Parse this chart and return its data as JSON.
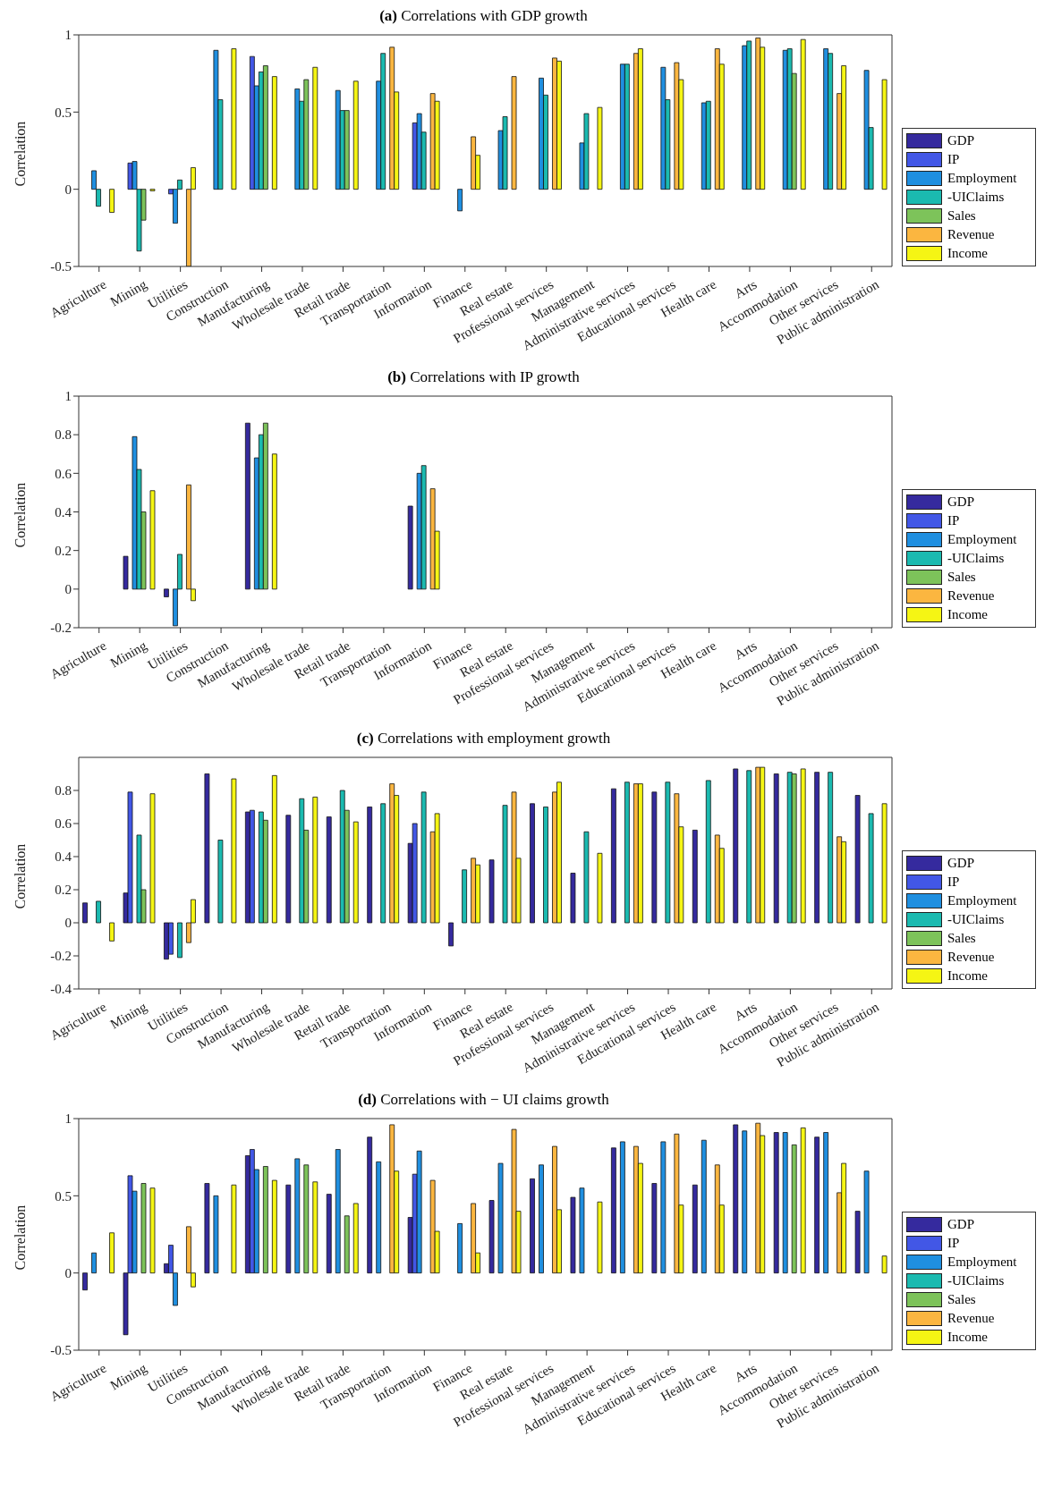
{
  "chart_data": [
    {
      "type": "bar",
      "title": "(a) Correlations with GDP growth",
      "ylabel": "Correlation",
      "categories": [
        "Agriculture",
        "Mining",
        "Utilities",
        "Construction",
        "Manufacturing",
        "Wholesale trade",
        "Retail trade",
        "Transportation",
        "Information",
        "Finance",
        "Real estate",
        "Professional services",
        "Management",
        "Administrative services",
        "Educational services",
        "Health care",
        "Arts",
        "Accommodation",
        "Other services",
        "Public administration"
      ],
      "series": [
        {
          "name": "GDP",
          "color": "#352a9e",
          "values": [
            0,
            0,
            0,
            0,
            0,
            0,
            0,
            0,
            0,
            0,
            0,
            0,
            0,
            0,
            0,
            0,
            0,
            0,
            0,
            0
          ]
        },
        {
          "name": "IP",
          "color": "#4257e6",
          "values": [
            0,
            0.17,
            -0.03,
            0,
            0.86,
            0,
            0,
            0,
            0.43,
            0,
            0,
            0,
            0,
            0,
            0,
            0,
            0,
            0,
            0,
            0
          ]
        },
        {
          "name": "Employment",
          "color": "#1f8fe0",
          "values": [
            0.12,
            0.18,
            -0.22,
            0.9,
            0.67,
            0.65,
            0.64,
            0.7,
            0.49,
            -0.14,
            0.38,
            0.72,
            0.3,
            0.81,
            0.79,
            0.56,
            0.93,
            0.9,
            0.91,
            0.77
          ]
        },
        {
          "name": "-UIClaims",
          "color": "#1bbab0",
          "values": [
            -0.11,
            -0.4,
            0.06,
            0.58,
            0.76,
            0.57,
            0.51,
            0.88,
            0.37,
            0,
            0.47,
            0.61,
            0.49,
            0.81,
            0.58,
            0.57,
            0.96,
            0.91,
            0.88,
            0.4
          ]
        },
        {
          "name": "Sales",
          "color": "#7dc35a",
          "values": [
            0,
            -0.2,
            0,
            0,
            0.8,
            0.71,
            0.51,
            0,
            0,
            0,
            0,
            0,
            0,
            0,
            0,
            0,
            0,
            0.75,
            0,
            0
          ]
        },
        {
          "name": "Revenue",
          "color": "#fbb640",
          "values": [
            0,
            0,
            -0.5,
            0,
            0,
            0,
            0,
            0.92,
            0.62,
            0.34,
            0.73,
            0.85,
            0,
            0.88,
            0.82,
            0.91,
            0.98,
            0,
            0.62,
            0
          ]
        },
        {
          "name": "Income",
          "color": "#f5f514",
          "values": [
            -0.15,
            -0.01,
            0.14,
            0.91,
            0.73,
            0.79,
            0.7,
            0.63,
            0.57,
            0.22,
            0,
            0.83,
            0.53,
            0.91,
            0.71,
            0.81,
            0.92,
            0.97,
            0.8,
            0.71
          ]
        }
      ],
      "ylim": [
        -0.5,
        1
      ],
      "yticks": [
        -0.5,
        0,
        0.5,
        1
      ],
      "legend": "right"
    },
    {
      "type": "bar",
      "title": "(b) Correlations with IP growth",
      "ylabel": "Correlation",
      "categories": [
        "Agriculture",
        "Mining",
        "Utilities",
        "Construction",
        "Manufacturing",
        "Wholesale trade",
        "Retail trade",
        "Transportation",
        "Information",
        "Finance",
        "Real estate",
        "Professional services",
        "Management",
        "Administrative services",
        "Educational services",
        "Health care",
        "Arts",
        "Accommodation",
        "Other services",
        "Public administration"
      ],
      "series": [
        {
          "name": "GDP",
          "color": "#352a9e",
          "values": [
            0,
            0.17,
            -0.04,
            0,
            0.86,
            0,
            0,
            0,
            0.43,
            0,
            0,
            0,
            0,
            0,
            0,
            0,
            0,
            0,
            0,
            0
          ]
        },
        {
          "name": "IP",
          "color": "#4257e6",
          "values": [
            0,
            0,
            0,
            0,
            0,
            0,
            0,
            0,
            0,
            0,
            0,
            0,
            0,
            0,
            0,
            0,
            0,
            0,
            0,
            0
          ]
        },
        {
          "name": "Employment",
          "color": "#1f8fe0",
          "values": [
            0,
            0.79,
            -0.19,
            0,
            0.68,
            0,
            0,
            0,
            0.6,
            0,
            0,
            0,
            0,
            0,
            0,
            0,
            0,
            0,
            0,
            0
          ]
        },
        {
          "name": "-UIClaims",
          "color": "#1bbab0",
          "values": [
            0,
            0.62,
            0.18,
            0,
            0.8,
            0,
            0,
            0,
            0.64,
            0,
            0,
            0,
            0,
            0,
            0,
            0,
            0,
            0,
            0,
            0
          ]
        },
        {
          "name": "Sales",
          "color": "#7dc35a",
          "values": [
            0,
            0.4,
            0,
            0,
            0.86,
            0,
            0,
            0,
            0,
            0,
            0,
            0,
            0,
            0,
            0,
            0,
            0,
            0,
            0,
            0
          ]
        },
        {
          "name": "Revenue",
          "color": "#fbb640",
          "values": [
            0,
            0,
            0.54,
            0,
            0,
            0,
            0,
            0,
            0.52,
            0,
            0,
            0,
            0,
            0,
            0,
            0,
            0,
            0,
            0,
            0
          ]
        },
        {
          "name": "Income",
          "color": "#f5f514",
          "values": [
            0,
            0.51,
            -0.06,
            0,
            0.7,
            0,
            0,
            0,
            0.3,
            0,
            0,
            0,
            0,
            0,
            0,
            0,
            0,
            0,
            0,
            0
          ]
        }
      ],
      "ylim": [
        -0.2,
        1
      ],
      "yticks": [
        -0.2,
        0,
        0.2,
        0.4,
        0.6,
        0.8,
        1
      ],
      "legend": "right"
    },
    {
      "type": "bar",
      "title": "(c) Correlations with employment growth",
      "ylabel": "Correlation",
      "categories": [
        "Agriculture",
        "Mining",
        "Utilities",
        "Construction",
        "Manufacturing",
        "Wholesale trade",
        "Retail trade",
        "Transportation",
        "Information",
        "Finance",
        "Real estate",
        "Professional services",
        "Management",
        "Administrative services",
        "Educational services",
        "Health care",
        "Arts",
        "Accommodation",
        "Other services",
        "Public administration"
      ],
      "series": [
        {
          "name": "GDP",
          "color": "#352a9e",
          "values": [
            0.12,
            0.18,
            -0.22,
            0.9,
            0.67,
            0.65,
            0.64,
            0.7,
            0.48,
            -0.14,
            0.38,
            0.72,
            0.3,
            0.81,
            0.79,
            0.56,
            0.93,
            0.9,
            0.91,
            0.77
          ]
        },
        {
          "name": "IP",
          "color": "#4257e6",
          "values": [
            0,
            0.79,
            -0.19,
            0,
            0.68,
            0,
            0,
            0,
            0.6,
            0,
            0,
            0,
            0,
            0,
            0,
            0,
            0,
            0,
            0,
            0
          ]
        },
        {
          "name": "Employment",
          "color": "#1f8fe0",
          "values": [
            0,
            0,
            0,
            0,
            0,
            0,
            0,
            0,
            0,
            0,
            0,
            0,
            0,
            0,
            0,
            0,
            0,
            0,
            0,
            0
          ]
        },
        {
          "name": "-UIClaims",
          "color": "#1bbab0",
          "values": [
            0.13,
            0.53,
            -0.21,
            0.5,
            0.67,
            0.75,
            0.8,
            0.72,
            0.79,
            0.32,
            0.71,
            0.7,
            0.55,
            0.85,
            0.85,
            0.86,
            0.92,
            0.91,
            0.91,
            0.66
          ]
        },
        {
          "name": "Sales",
          "color": "#7dc35a",
          "values": [
            0,
            0.2,
            0,
            0,
            0.62,
            0.56,
            0.68,
            0,
            0,
            0,
            0,
            0,
            0,
            0,
            0,
            0,
            0,
            0.9,
            0,
            0
          ]
        },
        {
          "name": "Revenue",
          "color": "#fbb640",
          "values": [
            0,
            0,
            -0.12,
            0,
            0,
            0,
            0,
            0.84,
            0.55,
            0.39,
            0.79,
            0.79,
            0,
            0.84,
            0.78,
            0.53,
            0.94,
            0,
            0.52,
            0
          ]
        },
        {
          "name": "Income",
          "color": "#f5f514",
          "values": [
            -0.11,
            0.78,
            0.14,
            0.87,
            0.89,
            0.76,
            0.61,
            0.77,
            0.66,
            0.35,
            0.39,
            0.85,
            0.42,
            0.84,
            0.58,
            0.45,
            0.94,
            0.93,
            0.49,
            0.72
          ]
        }
      ],
      "ylim": [
        -0.4,
        1
      ],
      "yticks": [
        -0.4,
        -0.2,
        0,
        0.2,
        0.4,
        0.6,
        0.8
      ],
      "legend": "right"
    },
    {
      "type": "bar",
      "title": "(d) Correlations with − UI claims growth",
      "ylabel": "Correlation",
      "categories": [
        "Agriculture",
        "Mining",
        "Utilities",
        "Construction",
        "Manufacturing",
        "Wholesale trade",
        "Retail trade",
        "Transportation",
        "Information",
        "Finance",
        "Real estate",
        "Professional services",
        "Management",
        "Administrative services",
        "Educational services",
        "Health care",
        "Arts",
        "Accommodation",
        "Other services",
        "Public administration"
      ],
      "series": [
        {
          "name": "GDP",
          "color": "#352a9e",
          "values": [
            -0.11,
            -0.4,
            0.06,
            0.58,
            0.76,
            0.57,
            0.51,
            0.88,
            0.36,
            0,
            0.47,
            0.61,
            0.49,
            0.81,
            0.58,
            0.57,
            0.96,
            0.91,
            0.88,
            0.4
          ]
        },
        {
          "name": "IP",
          "color": "#4257e6",
          "values": [
            0,
            0.63,
            0.18,
            0,
            0.8,
            0,
            0,
            0,
            0.64,
            0,
            0,
            0,
            0,
            0,
            0,
            0,
            0,
            0,
            0,
            0
          ]
        },
        {
          "name": "Employment",
          "color": "#1f8fe0",
          "values": [
            0.13,
            0.53,
            -0.21,
            0.5,
            0.67,
            0.74,
            0.8,
            0.72,
            0.79,
            0.32,
            0.71,
            0.7,
            0.55,
            0.85,
            0.85,
            0.86,
            0.92,
            0.91,
            0.91,
            0.66
          ]
        },
        {
          "name": "-UIClaims",
          "color": "#1bbab0",
          "values": [
            0,
            0,
            0,
            0,
            0,
            0,
            0,
            0,
            0,
            0,
            0,
            0,
            0,
            0,
            0,
            0,
            0,
            0,
            0,
            0
          ]
        },
        {
          "name": "Sales",
          "color": "#7dc35a",
          "values": [
            0,
            0.58,
            0,
            0,
            0.69,
            0.7,
            0.37,
            0,
            0,
            0,
            0,
            0,
            0,
            0,
            0,
            0,
            0,
            0.83,
            0,
            0
          ]
        },
        {
          "name": "Revenue",
          "color": "#fbb640",
          "values": [
            0,
            0,
            0.3,
            0,
            0,
            0,
            0,
            0.96,
            0.6,
            0.45,
            0.93,
            0.82,
            0,
            0.82,
            0.9,
            0.7,
            0.97,
            0,
            0.52,
            0
          ]
        },
        {
          "name": "Income",
          "color": "#f5f514",
          "values": [
            0.26,
            0.55,
            -0.09,
            0.57,
            0.6,
            0.59,
            0.45,
            0.66,
            0.27,
            0.13,
            0.4,
            0.41,
            0.46,
            0.71,
            0.44,
            0.44,
            0.89,
            0.94,
            0.71,
            0.11
          ]
        }
      ],
      "ylim": [
        -0.5,
        1
      ],
      "yticks": [
        -0.5,
        0,
        0.5,
        1
      ],
      "legend": "right"
    }
  ]
}
